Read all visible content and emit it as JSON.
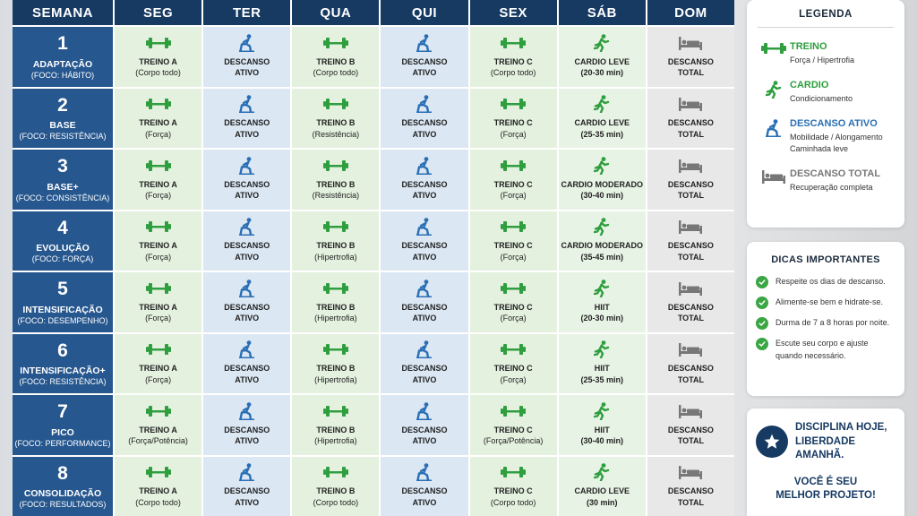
{
  "header": {
    "week": "SEMANA",
    "days": [
      "SEG",
      "TER",
      "QUA",
      "QUI",
      "SEX",
      "SÁB",
      "DOM"
    ]
  },
  "weeks": [
    {
      "num": "1",
      "name": "ADAPTAÇÃO",
      "focus": "(FOCO: HÁBITO)",
      "cells": [
        {
          "type": "treino",
          "l1": "TREINO A",
          "l2": "(Corpo todo)"
        },
        {
          "type": "desc-ativo",
          "l1": "DESCANSO",
          "l2": "ATIVO"
        },
        {
          "type": "treino",
          "l1": "TREINO B",
          "l2": "(Corpo todo)"
        },
        {
          "type": "desc-ativo",
          "l1": "DESCANSO",
          "l2": "ATIVO"
        },
        {
          "type": "treino",
          "l1": "TREINO C",
          "l2": "(Corpo todo)"
        },
        {
          "type": "cardio",
          "l1": "CARDIO LEVE",
          "l2": "(20-30 min)"
        },
        {
          "type": "desc-total",
          "l1": "DESCANSO",
          "l2": "TOTAL"
        }
      ]
    },
    {
      "num": "2",
      "name": "BASE",
      "focus": "(FOCO: RESISTÊNCIA)",
      "cells": [
        {
          "type": "treino",
          "l1": "TREINO A",
          "l2": "(Força)"
        },
        {
          "type": "desc-ativo",
          "l1": "DESCANSO",
          "l2": "ATIVO"
        },
        {
          "type": "treino",
          "l1": "TREINO B",
          "l2": "(Resistência)"
        },
        {
          "type": "desc-ativo",
          "l1": "DESCANSO",
          "l2": "ATIVO"
        },
        {
          "type": "treino",
          "l1": "TREINO C",
          "l2": "(Força)"
        },
        {
          "type": "cardio",
          "l1": "CARDIO LEVE",
          "l2": "(25-35 min)"
        },
        {
          "type": "desc-total",
          "l1": "DESCANSO",
          "l2": "TOTAL"
        }
      ]
    },
    {
      "num": "3",
      "name": "BASE+",
      "focus": "(FOCO: CONSISTÊNCIA)",
      "cells": [
        {
          "type": "treino",
          "l1": "TREINO A",
          "l2": "(Força)"
        },
        {
          "type": "desc-ativo",
          "l1": "DESCANSO",
          "l2": "ATIVO"
        },
        {
          "type": "treino",
          "l1": "TREINO B",
          "l2": "(Resistência)"
        },
        {
          "type": "desc-ativo",
          "l1": "DESCANSO",
          "l2": "ATIVO"
        },
        {
          "type": "treino",
          "l1": "TREINO C",
          "l2": "(Força)"
        },
        {
          "type": "cardio",
          "l1": "CARDIO MODERADO",
          "l2": "(30-40 min)"
        },
        {
          "type": "desc-total",
          "l1": "DESCANSO",
          "l2": "TOTAL"
        }
      ]
    },
    {
      "num": "4",
      "name": "EVOLUÇÃO",
      "focus": "(FOCO: FORÇA)",
      "cells": [
        {
          "type": "treino",
          "l1": "TREINO A",
          "l2": "(Força)"
        },
        {
          "type": "desc-ativo",
          "l1": "DESCANSO",
          "l2": "ATIVO"
        },
        {
          "type": "treino",
          "l1": "TREINO B",
          "l2": "(Hipertrofia)"
        },
        {
          "type": "desc-ativo",
          "l1": "DESCANSO",
          "l2": "ATIVO"
        },
        {
          "type": "treino",
          "l1": "TREINO C",
          "l2": "(Força)"
        },
        {
          "type": "cardio",
          "l1": "CARDIO MODERADO",
          "l2": "(35-45 min)"
        },
        {
          "type": "desc-total",
          "l1": "DESCANSO",
          "l2": "TOTAL"
        }
      ]
    },
    {
      "num": "5",
      "name": "INTENSIFICAÇÃO",
      "focus": "(FOCO: DESEMPENHO)",
      "cells": [
        {
          "type": "treino",
          "l1": "TREINO A",
          "l2": "(Força)"
        },
        {
          "type": "desc-ativo",
          "l1": "DESCANSO",
          "l2": "ATIVO"
        },
        {
          "type": "treino",
          "l1": "TREINO B",
          "l2": "(Hipertrofia)"
        },
        {
          "type": "desc-ativo",
          "l1": "DESCANSO",
          "l2": "ATIVO"
        },
        {
          "type": "treino",
          "l1": "TREINO C",
          "l2": "(Força)"
        },
        {
          "type": "cardio",
          "l1": "HIIT",
          "l2": "(20-30 min)"
        },
        {
          "type": "desc-total",
          "l1": "DESCANSO",
          "l2": "TOTAL"
        }
      ]
    },
    {
      "num": "6",
      "name": "INTENSIFICAÇÃO+",
      "focus": "(FOCO: RESISTÊNCIA)",
      "cells": [
        {
          "type": "treino",
          "l1": "TREINO A",
          "l2": "(Força)"
        },
        {
          "type": "desc-ativo",
          "l1": "DESCANSO",
          "l2": "ATIVO"
        },
        {
          "type": "treino",
          "l1": "TREINO B",
          "l2": "(Hipertrofia)"
        },
        {
          "type": "desc-ativo",
          "l1": "DESCANSO",
          "l2": "ATIVO"
        },
        {
          "type": "treino",
          "l1": "TREINO C",
          "l2": "(Força)"
        },
        {
          "type": "cardio",
          "l1": "HIIT",
          "l2": "(25-35 min)"
        },
        {
          "type": "desc-total",
          "l1": "DESCANSO",
          "l2": "TOTAL"
        }
      ]
    },
    {
      "num": "7",
      "name": "PICO",
      "focus": "(FOCO: PERFORMANCE)",
      "cells": [
        {
          "type": "treino",
          "l1": "TREINO A",
          "l2": "(Força/Potência)"
        },
        {
          "type": "desc-ativo",
          "l1": "DESCANSO",
          "l2": "ATIVO"
        },
        {
          "type": "treino",
          "l1": "TREINO B",
          "l2": "(Hipertrofia)"
        },
        {
          "type": "desc-ativo",
          "l1": "DESCANSO",
          "l2": "ATIVO"
        },
        {
          "type": "treino",
          "l1": "TREINO C",
          "l2": "(Força/Potência)"
        },
        {
          "type": "cardio",
          "l1": "HIIT",
          "l2": "(30-40 min)"
        },
        {
          "type": "desc-total",
          "l1": "DESCANSO",
          "l2": "TOTAL"
        }
      ]
    },
    {
      "num": "8",
      "name": "CONSOLIDAÇÃO",
      "focus": "(FOCO: RESULTADOS)",
      "cells": [
        {
          "type": "treino",
          "l1": "TREINO A",
          "l2": "(Corpo todo)"
        },
        {
          "type": "desc-ativo",
          "l1": "DESCANSO",
          "l2": "ATIVO"
        },
        {
          "type": "treino",
          "l1": "TREINO B",
          "l2": "(Corpo todo)"
        },
        {
          "type": "desc-ativo",
          "l1": "DESCANSO",
          "l2": "ATIVO"
        },
        {
          "type": "treino",
          "l1": "TREINO C",
          "l2": "(Corpo todo)"
        },
        {
          "type": "cardio",
          "l1": "CARDIO LEVE",
          "l2": "(30 min)"
        },
        {
          "type": "desc-total",
          "l1": "DESCANSO",
          "l2": "TOTAL"
        }
      ]
    }
  ],
  "legend": {
    "title": "LEGENDA",
    "items": [
      {
        "type": "treino",
        "name": "TREINO",
        "desc": "Força / Hipertrofia",
        "color": "#2e9e3e"
      },
      {
        "type": "cardio",
        "name": "CARDIO",
        "desc": "Condicionamento",
        "color": "#2e9e3e"
      },
      {
        "type": "desc-ativo",
        "name": "DESCANSO ATIVO",
        "desc": "Mobilidade / Alongamento",
        "desc2": "Caminhada leve",
        "color": "#2a6fb5"
      },
      {
        "type": "desc-total",
        "name": "DESCANSO TOTAL",
        "desc": "Recuperação completa",
        "color": "#777777"
      }
    ]
  },
  "tips": {
    "title": "DICAS IMPORTANTES",
    "items": [
      {
        "l1": "Respeite os dias de descanso."
      },
      {
        "l1": "Alimente-se bem e hidrate-se."
      },
      {
        "l1": "Durma de 7 a 8 horas por noite."
      },
      {
        "l1": "Escute seu corpo e ajuste",
        "l2": "quando necessário."
      }
    ]
  },
  "motto": {
    "line1a": "DISCIPLINA HOJE,",
    "line1b": "LIBERDADE AMANHÃ.",
    "line2a": "VOCÊ É SEU",
    "line2b": "MELHOR PROJETO!"
  },
  "colors": {
    "header": "#173a63",
    "week": "#26578f",
    "treino_bg": "#e4f1df",
    "desc_ativo_bg": "#dbe7f3",
    "desc_total_bg": "#e8e8e8",
    "green": "#2e9e3e",
    "blue": "#2a6fb5",
    "gray": "#777777"
  }
}
